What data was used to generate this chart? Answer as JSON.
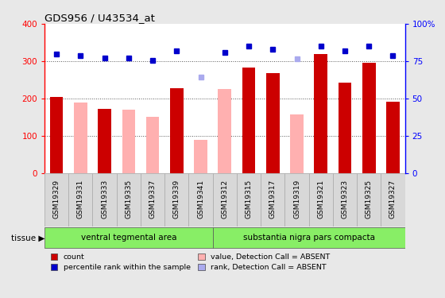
{
  "title": "GDS956 / U43534_at",
  "samples": [
    "GSM19329",
    "GSM19331",
    "GSM19333",
    "GSM19335",
    "GSM19337",
    "GSM19339",
    "GSM19341",
    "GSM19312",
    "GSM19315",
    "GSM19317",
    "GSM19319",
    "GSM19321",
    "GSM19323",
    "GSM19325",
    "GSM19327"
  ],
  "count_values": [
    203,
    null,
    173,
    null,
    null,
    228,
    null,
    null,
    283,
    268,
    null,
    320,
    243,
    295,
    192
  ],
  "absent_values": [
    null,
    190,
    null,
    170,
    150,
    null,
    88,
    226,
    null,
    null,
    157,
    null,
    null,
    null,
    null
  ],
  "rank_values": [
    320,
    315,
    308,
    308,
    302,
    328,
    null,
    324,
    340,
    332,
    null,
    340,
    328,
    340,
    315
  ],
  "absent_rank_values": [
    null,
    null,
    null,
    null,
    null,
    null,
    258,
    null,
    null,
    null,
    307,
    null,
    null,
    null,
    null
  ],
  "ylim_left": [
    0,
    400
  ],
  "ylim_right": [
    0,
    400
  ],
  "yticks_left": [
    0,
    100,
    200,
    300,
    400
  ],
  "yticks_right_vals": [
    0,
    100,
    200,
    300,
    400
  ],
  "yticks_right_labels": [
    "0",
    "25",
    "50",
    "75",
    "100%"
  ],
  "rank_scale": 4.0,
  "bar_color": "#cc0000",
  "absent_bar_color": "#ffb0b0",
  "rank_color": "#0000cc",
  "absent_rank_color": "#aaaaee",
  "tissue_groups": [
    {
      "label": "ventral tegmental area",
      "start": 0,
      "end": 7
    },
    {
      "label": "substantia nigra pars compacta",
      "start": 7,
      "end": 15
    }
  ],
  "tissue_label": "tissue",
  "legend_items": [
    {
      "label": "count",
      "color": "#cc0000"
    },
    {
      "label": "percentile rank within the sample",
      "color": "#0000cc"
    },
    {
      "label": "value, Detection Call = ABSENT",
      "color": "#ffb0b0"
    },
    {
      "label": "rank, Detection Call = ABSENT",
      "color": "#aaaaee"
    }
  ],
  "bg_color": "#e8e8e8",
  "plot_bg": "#ffffff",
  "xtick_bg": "#d8d8d8",
  "green_tissue_color": "#88ee66",
  "dotted_line_color": "#555555",
  "bar_width": 0.55
}
